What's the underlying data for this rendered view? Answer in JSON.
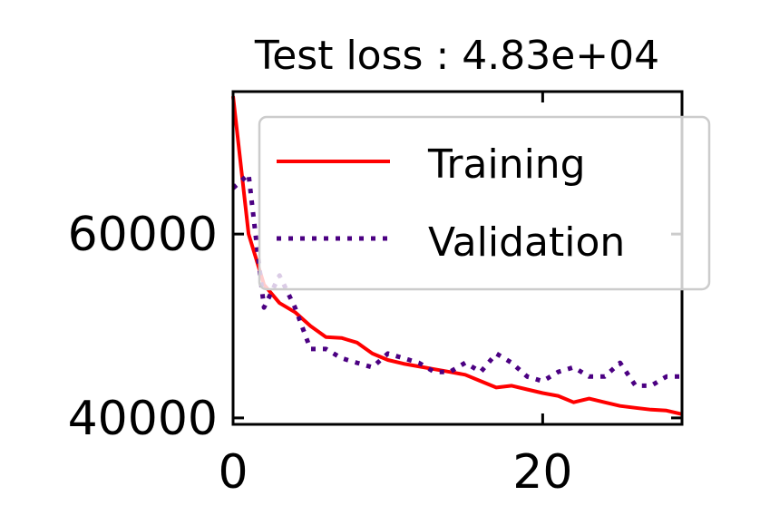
{
  "chart_data": {
    "type": "line",
    "title": "Test loss : 4.83e+04",
    "xlabel": "",
    "ylabel": "",
    "xlim": [
      0,
      29
    ],
    "ylim": [
      39300,
      75500
    ],
    "x_ticks": [
      0,
      20
    ],
    "y_ticks": [
      40000,
      60000
    ],
    "x_tick_labels": [
      "0",
      "20"
    ],
    "y_tick_labels": [
      "40000",
      "60000"
    ],
    "grid": false,
    "legend_position": "top-right",
    "series": [
      {
        "name": "Training",
        "color": "#ff0000",
        "style": "solid",
        "x": [
          0,
          1,
          2,
          3,
          4,
          5,
          6,
          7,
          8,
          9,
          10,
          11,
          12,
          13,
          14,
          15,
          16,
          17,
          18,
          19,
          20,
          21,
          22,
          23,
          24,
          25,
          26,
          27,
          28,
          29
        ],
        "y": [
          75000,
          60000,
          54500,
          52500,
          51500,
          50000,
          48800,
          48700,
          48200,
          47000,
          46300,
          45900,
          45600,
          45300,
          45000,
          44700,
          44000,
          43300,
          43500,
          43100,
          42700,
          42400,
          41700,
          42100,
          41700,
          41300,
          41100,
          40900,
          40800,
          40400
        ]
      },
      {
        "name": "Validation",
        "color": "#4b0082",
        "style": "dotted",
        "x": [
          0,
          1,
          2,
          3,
          4,
          5,
          6,
          7,
          8,
          9,
          10,
          11,
          12,
          13,
          14,
          15,
          16,
          17,
          18,
          19,
          20,
          21,
          22,
          23,
          24,
          25,
          26,
          27,
          28,
          29
        ],
        "y": [
          65000,
          66500,
          52000,
          55500,
          52000,
          47500,
          47500,
          46500,
          46000,
          45500,
          47000,
          46500,
          46000,
          45000,
          45000,
          46000,
          45000,
          47000,
          46000,
          44500,
          44000,
          45000,
          45500,
          44500,
          44500,
          46000,
          43500,
          43500,
          44500,
          44500
        ]
      }
    ]
  }
}
